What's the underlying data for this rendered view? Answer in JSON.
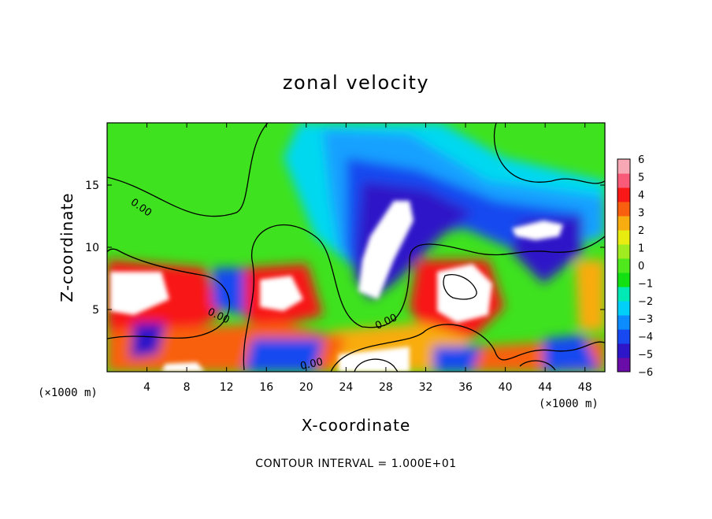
{
  "chart_data": {
    "type": "heatmap",
    "title": "zonal velocity",
    "xlabel": "X-coordinate",
    "ylabel": "Z-coordinate",
    "x_unit": "(×1000 m)",
    "z_unit": "(×1000 m)",
    "xlim": [
      0,
      50
    ],
    "ylim": [
      0,
      20
    ],
    "x_ticks": [
      4,
      8,
      12,
      16,
      20,
      24,
      28,
      32,
      36,
      40,
      44,
      48
    ],
    "y_ticks": [
      5,
      10,
      15
    ],
    "colorbar": {
      "min": -6,
      "max": 6,
      "ticks": [
        6,
        5,
        4,
        3,
        2,
        1,
        0,
        -1,
        -2,
        -3,
        -4,
        -5,
        -6
      ],
      "colors": [
        "#6a0da8",
        "#2d16c8",
        "#1848f0",
        "#0c8cff",
        "#00d0f8",
        "#00e8b4",
        "#12e012",
        "#4ee81c",
        "#a0ec20",
        "#e8ec10",
        "#f8ac10",
        "#f86010",
        "#f81818",
        "#f85a78",
        "#f8a8b4"
      ]
    },
    "contour_interval": "CONTOUR INTERVAL = 1.000E+01",
    "contour_labels": [
      "0.00",
      "0.00",
      "0.00",
      "0.00"
    ],
    "features": [
      {
        "x": 28,
        "z": 12.5,
        "value_label": "strong negative core (beyond colour scale)"
      },
      {
        "x": 44,
        "z": 11,
        "value_label": "negative core"
      },
      {
        "x": 34,
        "z": 7,
        "value_label": "positive core (beyond colour scale)"
      },
      {
        "x": 17.5,
        "z": 6.5,
        "value_label": "positive core"
      },
      {
        "x": 2.5,
        "z": 6.5,
        "value_label": "positive core"
      }
    ]
  }
}
